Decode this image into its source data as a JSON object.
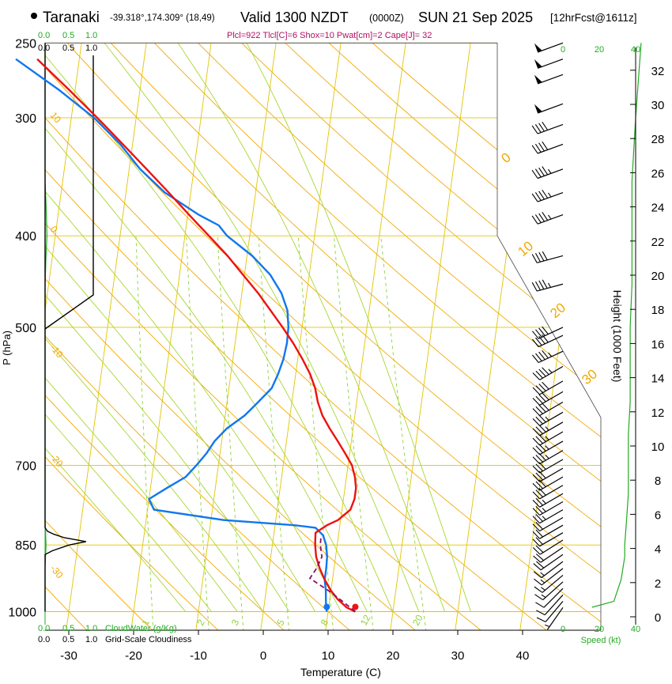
{
  "header": {
    "location": "Taranaki",
    "coords": "-39.318°,174.309° (18,49)",
    "valid": "Valid 1300 NZDT",
    "zulu": "(0000Z)",
    "date": "SUN 21 Sep 2025",
    "forecast": "[12hrFcst@1611z]",
    "indices": "Plcl=922 Tlcl[C]=6 Shox=10 Pwat[cm]=2 Cape[J]= 32"
  },
  "colors": {
    "temperature": "#ee1111",
    "dewpoint": "#1177ee",
    "parcel": "#881166",
    "isotherm": "#e3c400",
    "dry_adiabat": "#f2a800",
    "moist_adiabat": "#a9d630",
    "mixing_ratio": "#8fd23a",
    "green_axis": "#22aa22",
    "wind": "#000000"
  },
  "chart_data": {
    "type": "skew-t log-p sounding",
    "title": "Taranaki Valid 1300 NZDT (0000Z) SUN 21 Sep 2025",
    "xlabel": "Temperature (C)",
    "ylabel": "P (hPa)",
    "right_ylabel": "Height (1000 Feet)",
    "xlim": [
      -35,
      48
    ],
    "ylim": [
      1000,
      250
    ],
    "x_ticks": [
      -30,
      -20,
      -10,
      0,
      10,
      20,
      30,
      40
    ],
    "x_tick_labels": [
      "-30",
      "-20",
      "-10",
      "0",
      "10",
      "20",
      "30",
      "40"
    ],
    "pressure_ticks": [
      1000,
      850,
      700,
      500,
      400,
      300,
      250
    ],
    "pressure_tick_labels": [
      "1000",
      "850",
      "700",
      "500",
      "400",
      "300",
      "250"
    ],
    "height_ticks": [
      0,
      2,
      4,
      6,
      8,
      10,
      12,
      14,
      16,
      18,
      20,
      22,
      24,
      26,
      28,
      30,
      32
    ],
    "height_tick_labels": [
      "0",
      "2",
      "4",
      "6",
      "8",
      "10",
      "12",
      "14",
      "16",
      "18",
      "20",
      "22",
      "24",
      "26",
      "28",
      "30",
      "32"
    ],
    "temperature": {
      "name": "Temperature",
      "p": [
        1000,
        990,
        970,
        950,
        925,
        900,
        875,
        850,
        825,
        810,
        800,
        780,
        760,
        740,
        720,
        700,
        680,
        660,
        640,
        620,
        600,
        580,
        560,
        540,
        520,
        500,
        480,
        460,
        440,
        420,
        400,
        380,
        360,
        340,
        320,
        300,
        280,
        260
      ],
      "t": [
        14.2,
        12.8,
        11.2,
        10.0,
        8.8,
        7.8,
        7.0,
        6.6,
        6.4,
        8.0,
        9.6,
        11.3,
        11.7,
        11.7,
        11.3,
        10.6,
        9.3,
        7.9,
        6.4,
        5.0,
        4.0,
        3.3,
        2.2,
        0.7,
        -1.0,
        -3.0,
        -5.2,
        -7.5,
        -10.2,
        -13.0,
        -16.3,
        -19.8,
        -23.4,
        -27.3,
        -31.5,
        -36.0,
        -41.0,
        -46.5
      ]
    },
    "dewpoint": {
      "name": "Dewpoint",
      "p": [
        1000,
        990,
        970,
        950,
        925,
        900,
        875,
        850,
        830,
        815,
        810,
        800,
        780,
        760,
        740,
        720,
        700,
        680,
        660,
        640,
        620,
        600,
        580,
        560,
        540,
        520,
        500,
        480,
        460,
        440,
        420,
        400,
        390,
        380,
        360,
        340,
        320,
        300,
        280,
        260
      ],
      "td": [
        9.8,
        9.6,
        9.4,
        9.2,
        8.8,
        8.8,
        8.7,
        8.3,
        7.6,
        6.3,
        3.0,
        -8.0,
        -19.0,
        -20.0,
        -17.5,
        -14.8,
        -13.4,
        -12.1,
        -11.1,
        -9.5,
        -7.0,
        -5.2,
        -3.4,
        -2.7,
        -2.2,
        -2.0,
        -2.1,
        -2.6,
        -3.9,
        -6.0,
        -9.2,
        -13.5,
        -15.0,
        -18.3,
        -24.0,
        -28.3,
        -31.9,
        -36.5,
        -42.6,
        -49.8
      ]
    },
    "parcel": {
      "name": "Parcel path",
      "p": [
        1000,
        975,
        950,
        922,
        900,
        875,
        850,
        830
      ],
      "t": [
        14.2,
        12.0,
        9.6,
        6.5,
        7.3,
        7.9,
        7.4,
        7.3
      ]
    },
    "wind_barbs": [
      {
        "p": 990,
        "dir": 215,
        "spd": 7
      },
      {
        "p": 975,
        "dir": 220,
        "spd": 9
      },
      {
        "p": 960,
        "dir": 222,
        "spd": 10
      },
      {
        "p": 945,
        "dir": 225,
        "spd": 12
      },
      {
        "p": 930,
        "dir": 228,
        "spd": 14
      },
      {
        "p": 915,
        "dir": 230,
        "spd": 15
      },
      {
        "p": 900,
        "dir": 232,
        "spd": 16
      },
      {
        "p": 885,
        "dir": 233,
        "spd": 17
      },
      {
        "p": 870,
        "dir": 235,
        "spd": 18
      },
      {
        "p": 855,
        "dir": 236,
        "spd": 19
      },
      {
        "p": 840,
        "dir": 238,
        "spd": 20
      },
      {
        "p": 825,
        "dir": 240,
        "spd": 20
      },
      {
        "p": 810,
        "dir": 240,
        "spd": 20
      },
      {
        "p": 795,
        "dir": 240,
        "spd": 22
      },
      {
        "p": 780,
        "dir": 240,
        "spd": 24
      },
      {
        "p": 765,
        "dir": 240,
        "spd": 25
      },
      {
        "p": 750,
        "dir": 240,
        "spd": 27
      },
      {
        "p": 735,
        "dir": 240,
        "spd": 28
      },
      {
        "p": 720,
        "dir": 240,
        "spd": 30
      },
      {
        "p": 705,
        "dir": 240,
        "spd": 31
      },
      {
        "p": 690,
        "dir": 240,
        "spd": 32
      },
      {
        "p": 675,
        "dir": 240,
        "spd": 33
      },
      {
        "p": 660,
        "dir": 240,
        "spd": 34
      },
      {
        "p": 645,
        "dir": 240,
        "spd": 35
      },
      {
        "p": 630,
        "dir": 240,
        "spd": 35
      },
      {
        "p": 615,
        "dir": 240,
        "spd": 36
      },
      {
        "p": 600,
        "dir": 240,
        "spd": 38
      },
      {
        "p": 585,
        "dir": 240,
        "spd": 40
      },
      {
        "p": 570,
        "dir": 240,
        "spd": 42
      },
      {
        "p": 550,
        "dir": 240,
        "spd": 45
      },
      {
        "p": 530,
        "dir": 245,
        "spd": 45
      },
      {
        "p": 510,
        "dir": 245,
        "spd": 40
      },
      {
        "p": 500,
        "dir": 245,
        "spd": 40
      },
      {
        "p": 450,
        "dir": 255,
        "spd": 45
      },
      {
        "p": 420,
        "dir": 255,
        "spd": 40
      },
      {
        "p": 380,
        "dir": 250,
        "spd": 45
      },
      {
        "p": 360,
        "dir": 250,
        "spd": 45
      },
      {
        "p": 340,
        "dir": 250,
        "spd": 45
      },
      {
        "p": 320,
        "dir": 250,
        "spd": 40
      },
      {
        "p": 305,
        "dir": 250,
        "spd": 40
      },
      {
        "p": 290,
        "dir": 250,
        "spd": 50
      },
      {
        "p": 270,
        "dir": 250,
        "spd": 50
      },
      {
        "p": 260,
        "dir": 250,
        "spd": 50
      },
      {
        "p": 250,
        "dir": 250,
        "spd": 50
      }
    ],
    "wind_speed_profile": {
      "name": "Speed (kt)",
      "p": [
        1000,
        975,
        950,
        925,
        900,
        875,
        850,
        800,
        750,
        700,
        650,
        600,
        550,
        500,
        450,
        400,
        350,
        300,
        250
      ],
      "spd": [
        16,
        28,
        30,
        32,
        33,
        34,
        34,
        35,
        36,
        36,
        36,
        37,
        37,
        37,
        38,
        38,
        38,
        40,
        43
      ]
    },
    "speed_axis": {
      "label": "Speed (kt)",
      "range": [
        0,
        40
      ],
      "ticks": [
        "0",
        "20",
        "40"
      ]
    },
    "left_panel": {
      "labels": [
        "0.0",
        "0.5",
        "1.0",
        "0.0",
        "0.5",
        "1.0"
      ],
      "cloudwater_label": "CloudWater (g/Kg)",
      "cloudiness_label": "Grid-Scale Cloudiness"
    },
    "cloudiness_profile": {
      "name": "Grid-Scale Cloudiness",
      "p": [
        1000,
        870,
        862,
        850,
        843,
        835,
        828,
        822,
        815,
        700,
        250
      ],
      "value": [
        0,
        0,
        0.15,
        0.5,
        0.85,
        0.4,
        0.18,
        0.05,
        0,
        0,
        0
      ]
    },
    "cloudwater_profile": {
      "name": "CloudWater (g/Kg)",
      "p": [
        1000,
        900,
        850,
        800,
        700,
        600,
        500,
        450,
        420,
        400,
        370,
        350,
        300,
        250
      ],
      "value": [
        0,
        0,
        0.02,
        0,
        0,
        0,
        0,
        0,
        0.02,
        0.04,
        0.02,
        0,
        0,
        0
      ]
    },
    "isobar_levels": [
      1000,
      850,
      700,
      500,
      400,
      300,
      250
    ],
    "isotherms": [
      -110,
      -100,
      -90,
      -80,
      -70,
      -60,
      -50,
      -40,
      -30,
      -20,
      -10,
      0,
      10,
      20,
      30,
      40
    ],
    "dry_adiabats": [
      -30,
      -20,
      -10,
      0,
      10,
      20,
      30,
      40,
      50,
      60,
      70,
      80,
      90,
      100,
      110,
      120,
      130,
      140
    ],
    "dry_adiabat_labels": [
      "10",
      "0",
      "-10",
      "-20",
      "-30"
    ],
    "moist_adiabats": [
      -12,
      -8,
      -4,
      0,
      4,
      8,
      12,
      16,
      20,
      24,
      28,
      32
    ],
    "moist_adiabat_labels": [
      "0",
      "10",
      "20",
      "30"
    ],
    "mixing_ratio_lines": [
      1,
      2,
      3,
      5,
      8,
      12,
      20
    ],
    "mixing_ratio_labels": [
      "1",
      "2",
      "3",
      "5",
      "8",
      "12",
      "20"
    ]
  }
}
